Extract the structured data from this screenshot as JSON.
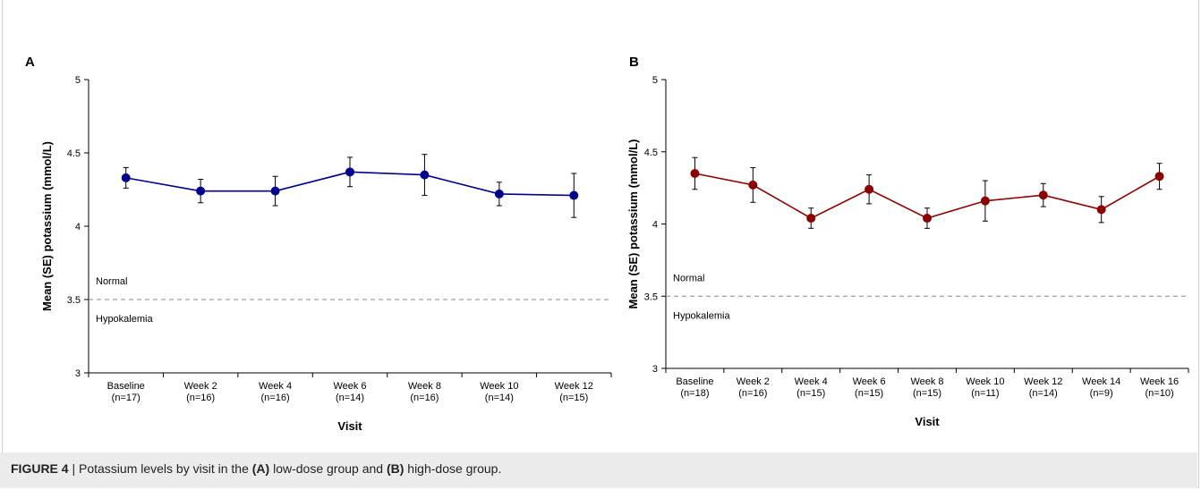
{
  "caption": {
    "label": "FIGURE 4",
    "sep": " | ",
    "t1": "Potassium levels by visit in the ",
    "a": "(A)",
    "t2": " low-dose group and ",
    "b": "(B)",
    "t3": " high-dose group."
  },
  "chart_data": [
    {
      "type": "line",
      "panel": "A",
      "ylabel": "Mean (SE) potassium (mmol/L)",
      "xlabel": "Visit",
      "ylim": [
        3,
        5
      ],
      "yticks": [
        "3",
        "3.5",
        "4",
        "4.5",
        "5"
      ],
      "categories": [
        "Baseline",
        "Week 2",
        "Week 4",
        "Week 6",
        "Week 8",
        "Week 10",
        "Week 12"
      ],
      "n_labels": [
        "(n=17)",
        "(n=16)",
        "(n=16)",
        "(n=14)",
        "(n=16)",
        "(n=14)",
        "(n=15)"
      ],
      "series": [
        {
          "values": [
            4.33,
            4.24,
            4.24,
            4.37,
            4.35,
            4.22,
            4.21
          ],
          "se": [
            0.07,
            0.08,
            0.1,
            0.1,
            0.14,
            0.08,
            0.15
          ],
          "color": "#00008b"
        }
      ],
      "reference_line": {
        "y": 3.5,
        "above_label": "Normal",
        "below_label": "Hypokalemia"
      },
      "grid": false
    },
    {
      "type": "line",
      "panel": "B",
      "ylabel": "Mean (SE) potassium (mmol/L)",
      "xlabel": "Visit",
      "ylim": [
        3,
        5
      ],
      "yticks": [
        "3",
        "3.5",
        "4",
        "4.5",
        "5"
      ],
      "categories": [
        "Baseline",
        "Week 2",
        "Week 4",
        "Week 6",
        "Week 8",
        "Week 10",
        "Week 12",
        "Week 14",
        "Week 16"
      ],
      "n_labels": [
        "(n=18)",
        "(n=16)",
        "(n=15)",
        "(n=15)",
        "(n=15)",
        "(n=11)",
        "(n=14)",
        "(n=9)",
        "(n=10)"
      ],
      "series": [
        {
          "values": [
            4.35,
            4.27,
            4.04,
            4.24,
            4.04,
            4.16,
            4.2,
            4.1,
            4.33
          ],
          "se": [
            0.11,
            0.12,
            0.07,
            0.1,
            0.07,
            0.14,
            0.08,
            0.09,
            0.09
          ],
          "color": "#8b0000"
        }
      ],
      "reference_line": {
        "y": 3.5,
        "above_label": "Normal",
        "below_label": "Hypokalemia"
      },
      "grid": false
    }
  ]
}
